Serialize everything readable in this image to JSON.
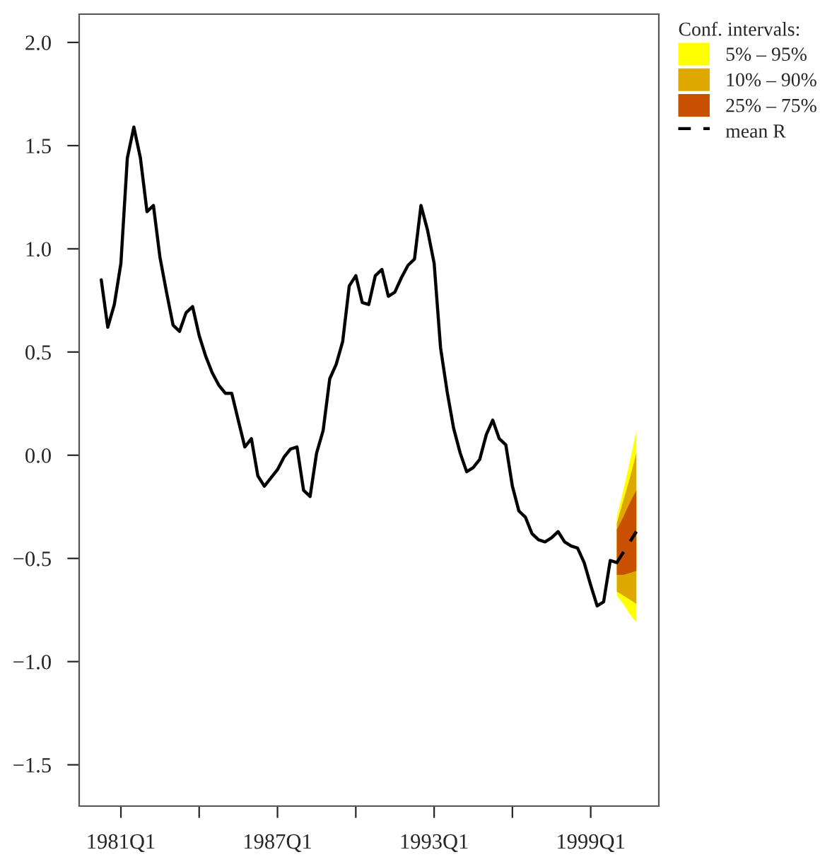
{
  "chart_data": {
    "type": "line",
    "x": [
      "1980-04",
      "1980-07",
      "1980-10",
      "1981-01",
      "1981-04",
      "1981-07",
      "1981-10",
      "1982-01",
      "1982-04",
      "1982-07",
      "1982-10",
      "1983-01",
      "1983-04",
      "1983-07",
      "1983-10",
      "1984-01",
      "1984-04",
      "1984-07",
      "1984-10",
      "1985-01",
      "1985-04",
      "1985-07",
      "1985-10",
      "1986-01",
      "1986-04",
      "1986-07",
      "1986-10",
      "1987-01",
      "1987-04",
      "1987-07",
      "1987-10",
      "1988-01",
      "1988-04",
      "1988-07",
      "1988-10",
      "1989-01",
      "1989-04",
      "1989-07",
      "1989-10",
      "1990-01",
      "1990-04",
      "1990-07",
      "1990-10",
      "1991-01",
      "1991-04",
      "1991-07",
      "1991-10",
      "1992-01",
      "1992-04",
      "1992-07",
      "1992-10",
      "1993-01",
      "1993-04",
      "1993-07",
      "1993-10",
      "1994-01",
      "1994-04",
      "1994-07",
      "1994-10",
      "1995-01",
      "1995-04",
      "1995-07",
      "1995-10",
      "1996-01",
      "1996-04",
      "1996-07",
      "1996-10",
      "1997-01",
      "1997-04",
      "1997-07",
      "1997-10",
      "1998-01",
      "1998-04",
      "1998-07",
      "1998-10",
      "1999-01",
      "1999-04",
      "1999-07",
      "1999-10",
      "2000-01"
    ],
    "series": [
      {
        "color": "#000000",
        "values": [
          0.85,
          0.62,
          0.73,
          0.93,
          1.44,
          1.59,
          1.44,
          1.18,
          1.21,
          0.96,
          0.79,
          0.63,
          0.6,
          0.69,
          0.72,
          0.58,
          0.48,
          0.4,
          0.34,
          0.3,
          0.3,
          0.17,
          0.04,
          0.08,
          -0.1,
          -0.15,
          -0.11,
          -0.07,
          -0.01,
          0.03,
          0.04,
          -0.17,
          -0.2,
          0.01,
          0.12,
          0.37,
          0.44,
          0.55,
          0.82,
          0.87,
          0.74,
          0.73,
          0.87,
          0.9,
          0.77,
          0.79,
          0.86,
          0.92,
          0.95,
          1.21,
          1.09,
          0.93,
          0.52,
          0.31,
          0.13,
          0.01,
          -0.08,
          -0.06,
          -0.02,
          0.1,
          0.17,
          0.08,
          0.05,
          -0.15,
          -0.27,
          -0.3,
          -0.38,
          -0.41,
          -0.42,
          -0.4,
          -0.37,
          -0.42,
          -0.44,
          -0.45,
          -0.52,
          -0.63,
          -0.73,
          -0.71,
          -0.51,
          -0.52
        ]
      },
      {
        "type": "line",
        "name": "5% – 95%",
        "color": "#ffff00",
        "x": [
          "2000-01",
          "2000-04",
          "2000-07",
          "2000-10"
        ],
        "values": [
          null,
          null,
          null,
          null
        ],
        "lower": [
          -0.68,
          -0.72,
          -0.77,
          -0.81
        ],
        "upper": [
          -0.3,
          -0.17,
          -0.03,
          0.12
        ]
      },
      {
        "type": "line",
        "name": "10% – 90%",
        "color": "#dfa800",
        "x": [
          "2000-01",
          "2000-04",
          "2000-07",
          "2000-10"
        ],
        "values": [
          null,
          null,
          null,
          null
        ],
        "lower": [
          -0.66,
          -0.68,
          -0.7,
          -0.72
        ],
        "upper": [
          -0.33,
          -0.22,
          -0.11,
          0.01
        ]
      },
      {
        "type": "line",
        "name": "25% – 75%",
        "color": "#c85000",
        "x": [
          "2000-01",
          "2000-04",
          "2000-07",
          "2000-10"
        ],
        "values": [
          null,
          null,
          null,
          null
        ],
        "lower": [
          -0.58,
          -0.58,
          -0.57,
          -0.56
        ],
        "upper": [
          -0.36,
          -0.3,
          -0.23,
          -0.17
        ]
      },
      {
        "type": "line",
        "name": "mean R",
        "color": "#000000",
        "line_style": "dashed",
        "x": [
          "2000-01",
          "2000-04",
          "2000-07",
          "2000-10"
        ],
        "values": [
          -0.52,
          -0.47,
          -0.42,
          -0.37
        ]
      }
    ],
    "legend_title": "Conf. intervals:",
    "legend": "right",
    "xlim": [
      "1979-05-28",
      "2001-08-11"
    ],
    "xticks": [
      {
        "value": "1981-01",
        "label": "1981Q1"
      },
      {
        "value": "1984-01",
        "label": null
      },
      {
        "value": "1987-01",
        "label": "1987Q1"
      },
      {
        "value": "1990-01",
        "label": null
      },
      {
        "value": "1993-01",
        "label": "1993Q1"
      },
      {
        "value": "1996-01",
        "label": null
      },
      {
        "value": "1999-01",
        "label": "1999Q1"
      }
    ],
    "ylim": [
      -1.7,
      2.137
    ],
    "yticks": [
      {
        "value": -1.5,
        "label": "−1.5"
      },
      {
        "value": -1.0,
        "label": "−1.0"
      },
      {
        "value": -0.5,
        "label": "−0.5"
      },
      {
        "value": 0,
        "label": "0.0"
      },
      {
        "value": 0.5,
        "label": "0.5"
      },
      {
        "value": 1.0,
        "label": "1.0"
      },
      {
        "value": 1.5,
        "label": "1.5"
      },
      {
        "value": 2.0,
        "label": "2.0"
      }
    ]
  }
}
